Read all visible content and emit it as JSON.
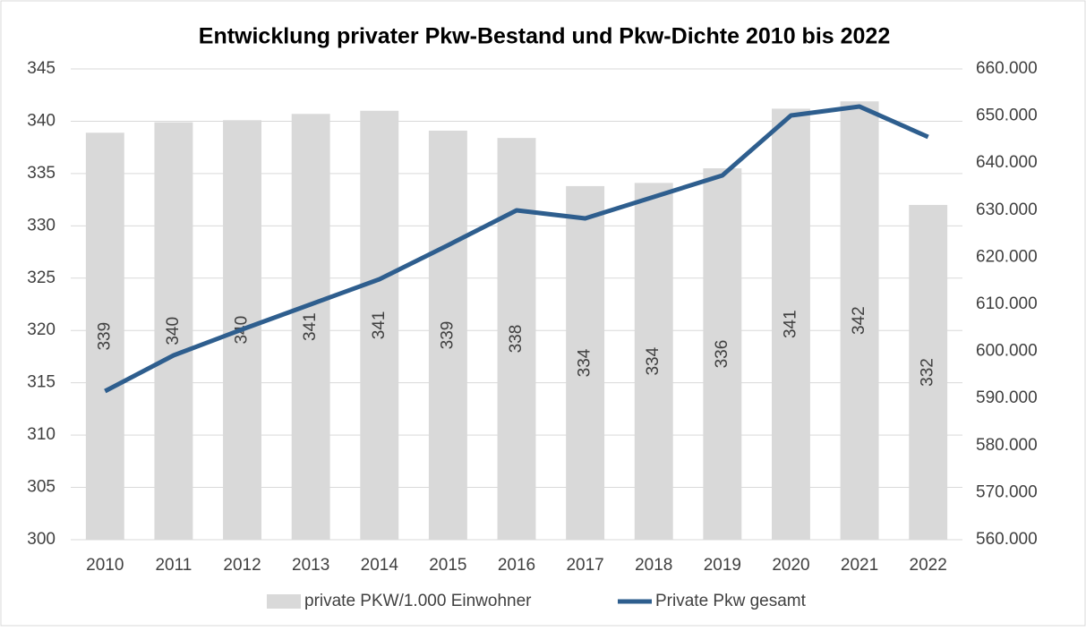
{
  "chart_data": {
    "type": "bar-line",
    "title": "Entwicklung privater Pkw-Bestand und Pkw-Dichte 2010 bis 2022",
    "categories": [
      "2010",
      "2011",
      "2012",
      "2013",
      "2014",
      "2015",
      "2016",
      "2017",
      "2018",
      "2019",
      "2020",
      "2021",
      "2022"
    ],
    "series": [
      {
        "name": "private PKW/1.000 Einwohner",
        "type": "bar",
        "color": "#d9d9d9",
        "values": [
          338.9,
          339.9,
          340.1,
          340.7,
          341.0,
          339.1,
          338.4,
          333.8,
          334.1,
          335.5,
          341.2,
          341.9,
          332.0
        ],
        "value_labels": [
          "339",
          "340",
          "340",
          "341",
          "341",
          "339",
          "338",
          "334",
          "334",
          "336",
          "341",
          "342",
          "332"
        ]
      },
      {
        "name": "Private Pkw gesamt",
        "type": "line",
        "color": "#2e5e8e",
        "axis": "y2",
        "values": [
          591560,
          599160,
          604680,
          610000,
          615320,
          622550,
          629960,
          628250,
          632810,
          637380,
          650110,
          652010,
          645550
        ]
      }
    ],
    "ylim": [
      300,
      345
    ],
    "yticks": [
      300,
      305,
      310,
      315,
      320,
      325,
      330,
      335,
      340,
      345
    ],
    "y2lim": [
      560000,
      660000
    ],
    "y2ticks": [
      {
        "value": 560000,
        "label": "560.000"
      },
      {
        "value": 570000,
        "label": "570.000"
      },
      {
        "value": 580000,
        "label": "580.000"
      },
      {
        "value": 590000,
        "label": "590.000"
      },
      {
        "value": 600000,
        "label": "600.000"
      },
      {
        "value": 610000,
        "label": "610.000"
      },
      {
        "value": 620000,
        "label": "620.000"
      },
      {
        "value": 630000,
        "label": "630.000"
      },
      {
        "value": 640000,
        "label": "640.000"
      },
      {
        "value": 650000,
        "label": "650.000"
      },
      {
        "value": 660000,
        "label": "660.000"
      }
    ],
    "grid": true,
    "legend": "bottom"
  }
}
